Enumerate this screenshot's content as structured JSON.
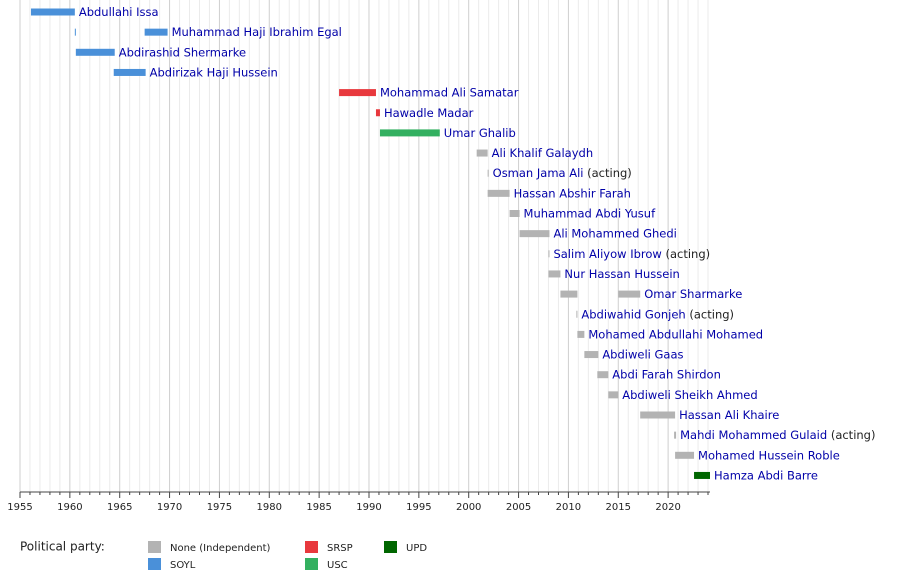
{
  "chart_data": {
    "type": "timeline",
    "xlim": [
      1955,
      2024.2
    ],
    "xticks": [
      1955,
      1960,
      1965,
      1970,
      1975,
      1980,
      1985,
      1990,
      1995,
      2000,
      2005,
      2010,
      2015,
      2020
    ],
    "minor_xticks": [
      1956,
      1957,
      1958,
      1959,
      1961,
      1962,
      1963,
      1964,
      1966,
      1967,
      1968,
      1969,
      1971,
      1972,
      1973,
      1974,
      1976,
      1977,
      1978,
      1979,
      1981,
      1982,
      1983,
      1984,
      1986,
      1987,
      1988,
      1989,
      1991,
      1992,
      1993,
      1994,
      1996,
      1997,
      1998,
      1999,
      2001,
      2002,
      2003,
      2004,
      2006,
      2007,
      2008,
      2009,
      2011,
      2012,
      2013,
      2014,
      2016,
      2017,
      2018,
      2019,
      2021,
      2022,
      2023,
      2024
    ],
    "grid": true,
    "legend_title": "Political party:",
    "parties": [
      {
        "name": "None (Independent)",
        "color": "#b3b3b3"
      },
      {
        "name": "SOYL",
        "color": "#4a90d9"
      },
      {
        "name": "SRSP",
        "color": "#e8383d"
      },
      {
        "name": "USC",
        "color": "#33b060"
      },
      {
        "name": "UPD",
        "color": "#006600"
      }
    ],
    "rows": [
      {
        "label": "Abdullahi Issa",
        "party": "SOYL",
        "bars": [
          [
            1956.1,
            1960.5
          ]
        ]
      },
      {
        "label": "Muhammad Haji Ibrahim Egal",
        "party": "SOYL",
        "bars": [
          [
            1960.5,
            1960.6
          ],
          [
            1967.5,
            1969.8
          ]
        ]
      },
      {
        "label": "Abdirashid Shermarke",
        "party": "SOYL",
        "bars": [
          [
            1960.6,
            1964.5
          ]
        ]
      },
      {
        "label": "Abdirizak Haji Hussein",
        "party": "SOYL",
        "bars": [
          [
            1964.4,
            1967.6
          ]
        ]
      },
      {
        "label": "Mohammad Ali Samatar",
        "party": "SRSP",
        "bars": [
          [
            1987.0,
            1990.7
          ]
        ]
      },
      {
        "label": "Hawadle Madar",
        "party": "SRSP",
        "bars": [
          [
            1990.7,
            1991.1
          ]
        ]
      },
      {
        "label": "Umar Ghalib",
        "party": "USC",
        "bars": [
          [
            1991.1,
            1997.1
          ]
        ]
      },
      {
        "label": "Ali Khalif Galaydh",
        "party": "None (Independent)",
        "bars": [
          [
            2000.8,
            2001.9
          ]
        ]
      },
      {
        "label": "Osman Jama Ali",
        "note": "(acting)",
        "party": "None (Independent)",
        "bars": [
          [
            2001.9,
            2002.0
          ]
        ]
      },
      {
        "label": "Hassan Abshir Farah",
        "party": "None (Independent)",
        "bars": [
          [
            2001.9,
            2004.1
          ]
        ]
      },
      {
        "label": "Muhammad Abdi Yusuf",
        "party": "None (Independent)",
        "bars": [
          [
            2004.1,
            2005.1
          ]
        ]
      },
      {
        "label": "Ali Mohammed Ghedi",
        "party": "None (Independent)",
        "bars": [
          [
            2005.1,
            2008.1
          ]
        ]
      },
      {
        "label": "Salim Aliyow Ibrow",
        "note": "(acting)",
        "party": "None (Independent)",
        "bars": [
          [
            2008.0,
            2008.1
          ]
        ]
      },
      {
        "label": "Nur Hassan Hussein",
        "party": "None (Independent)",
        "bars": [
          [
            2008.0,
            2009.2
          ]
        ]
      },
      {
        "label": "Omar Sharmarke",
        "party": "None (Independent)",
        "bars": [
          [
            2009.2,
            2010.9
          ],
          [
            2015.0,
            2017.2
          ]
        ]
      },
      {
        "label": "Abdiwahid Gonjeh",
        "note": "(acting)",
        "party": "None (Independent)",
        "bars": [
          [
            2010.8,
            2010.9
          ]
        ]
      },
      {
        "label": "Mohamed Abdullahi Mohamed",
        "party": "None (Independent)",
        "bars": [
          [
            2010.9,
            2011.6
          ]
        ]
      },
      {
        "label": "Abdiweli Gaas",
        "party": "None (Independent)",
        "bars": [
          [
            2011.6,
            2013.0
          ]
        ]
      },
      {
        "label": "Abdi Farah Shirdon",
        "party": "None (Independent)",
        "bars": [
          [
            2012.9,
            2014.0
          ]
        ]
      },
      {
        "label": "Abdiweli Sheikh Ahmed",
        "party": "None (Independent)",
        "bars": [
          [
            2014.0,
            2015.0
          ]
        ]
      },
      {
        "label": "Hassan Ali Khaire",
        "party": "None (Independent)",
        "bars": [
          [
            2017.2,
            2020.7
          ]
        ]
      },
      {
        "label": "Mahdi Mohammed Gulaid",
        "note": "(acting)",
        "party": "None (Independent)",
        "bars": [
          [
            2020.6,
            2020.8
          ]
        ]
      },
      {
        "label": "Mohamed Hussein Roble",
        "party": "None (Independent)",
        "bars": [
          [
            2020.7,
            2022.6
          ]
        ]
      },
      {
        "label": "Hamza Abdi Barre",
        "party": "UPD",
        "bars": [
          [
            2022.6,
            2024.2
          ]
        ]
      }
    ]
  }
}
